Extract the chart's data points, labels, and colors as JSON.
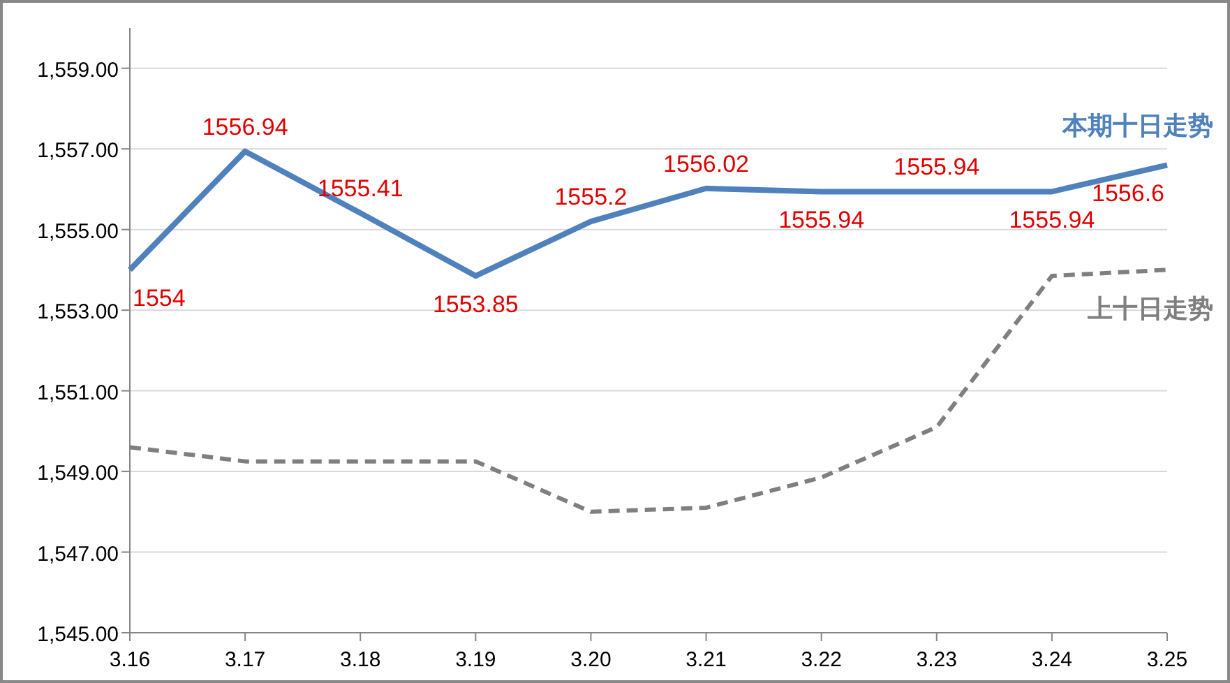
{
  "chart_data": {
    "type": "line",
    "categories": [
      "3.16",
      "3.17",
      "3.18",
      "3.19",
      "3.20",
      "3.21",
      "3.22",
      "3.23",
      "3.24",
      "3.25"
    ],
    "series": [
      {
        "name": "本期十日走势",
        "color": "#4f81bd",
        "line_style": "solid",
        "data_labels": true,
        "values": [
          1554,
          1556.94,
          1555.41,
          1553.85,
          1555.2,
          1556.02,
          1555.94,
          1555.94,
          1555.94,
          1556.6
        ]
      },
      {
        "name": "上十日走势",
        "color": "#7f7f7f",
        "line_style": "dashed",
        "values": [
          1549.6,
          1549.25,
          1549.25,
          1549.25,
          1548.0,
          1548.1,
          1548.85,
          1550.1,
          1553.85,
          1554.0
        ]
      }
    ],
    "ylim": [
      1545,
      1560
    ],
    "yticks": [
      {
        "value": 1545,
        "label": "1,545.00"
      },
      {
        "value": 1547,
        "label": "1,547.00"
      },
      {
        "value": 1549,
        "label": "1,549.00"
      },
      {
        "value": 1551,
        "label": "1,551.00"
      },
      {
        "value": 1553,
        "label": "1,553.00"
      },
      {
        "value": 1555,
        "label": "1,555.00"
      },
      {
        "value": 1557,
        "label": "1,557.00"
      },
      {
        "value": 1559,
        "label": "1,559.00"
      }
    ],
    "grid": "y",
    "legend": false,
    "marker": "none"
  }
}
